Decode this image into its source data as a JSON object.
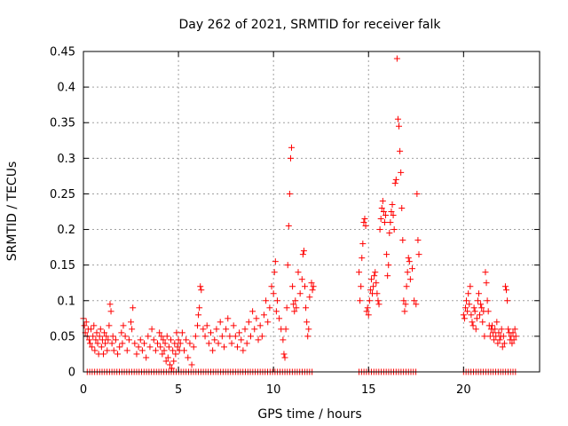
{
  "chart_data": {
    "type": "scatter",
    "title": "Day 262 of 2021, SRMTID for receiver falk",
    "xlabel": "GPS time / hours",
    "ylabel": "SRMTID / TECUs",
    "xlim": [
      0,
      24
    ],
    "ylim": [
      0,
      0.45
    ],
    "xticks": [
      0,
      5,
      10,
      15,
      20
    ],
    "xtick_labels": [
      "0",
      "5",
      "10",
      "15",
      "20"
    ],
    "yticks": [
      0,
      0.05,
      0.1,
      0.15,
      0.2,
      0.25,
      0.3,
      0.35,
      0.4,
      0.45
    ],
    "ytick_labels": [
      "0",
      "0.05",
      "0.1",
      "0.15",
      "0.2",
      "0.25",
      "0.3",
      "0.35",
      "0.4",
      "0.45"
    ],
    "grid": true,
    "marker": "plus",
    "color": "#ff0000",
    "series": [
      {
        "name": "SRMTID",
        "points": [
          [
            0.0,
            0.075
          ],
          [
            0.05,
            0.065
          ],
          [
            0.1,
            0.055
          ],
          [
            0.15,
            0.07
          ],
          [
            0.2,
            0.05
          ],
          [
            0.25,
            0.06
          ],
          [
            0.3,
            0.045
          ],
          [
            0.35,
            0.04
          ],
          [
            0.4,
            0.06
          ],
          [
            0.45,
            0.035
          ],
          [
            0.5,
            0.05
          ],
          [
            0.55,
            0.065
          ],
          [
            0.6,
            0.03
          ],
          [
            0.65,
            0.045
          ],
          [
            0.7,
            0.055
          ],
          [
            0.75,
            0.04
          ],
          [
            0.8,
            0.025
          ],
          [
            0.85,
            0.05
          ],
          [
            0.9,
            0.06
          ],
          [
            0.95,
            0.035
          ],
          [
            1.0,
            0.045
          ],
          [
            1.05,
            0.025
          ],
          [
            1.1,
            0.055
          ],
          [
            1.15,
            0.04
          ],
          [
            1.2,
            0.05
          ],
          [
            1.25,
            0.03
          ],
          [
            1.3,
            0.045
          ],
          [
            1.35,
            0.065
          ],
          [
            1.4,
            0.095
          ],
          [
            1.45,
            0.085
          ],
          [
            1.5,
            0.04
          ],
          [
            1.55,
            0.05
          ],
          [
            1.6,
            0.03
          ],
          [
            1.7,
            0.045
          ],
          [
            1.8,
            0.025
          ],
          [
            1.9,
            0.035
          ],
          [
            2.0,
            0.055
          ],
          [
            2.05,
            0.04
          ],
          [
            2.1,
            0.065
          ],
          [
            2.2,
            0.05
          ],
          [
            2.3,
            0.03
          ],
          [
            2.4,
            0.045
          ],
          [
            2.5,
            0.07
          ],
          [
            2.55,
            0.06
          ],
          [
            2.6,
            0.09
          ],
          [
            2.7,
            0.04
          ],
          [
            2.8,
            0.025
          ],
          [
            2.9,
            0.035
          ],
          [
            3.0,
            0.045
          ],
          [
            3.1,
            0.03
          ],
          [
            3.2,
            0.04
          ],
          [
            3.3,
            0.02
          ],
          [
            3.4,
            0.05
          ],
          [
            3.5,
            0.035
          ],
          [
            3.6,
            0.06
          ],
          [
            3.7,
            0.045
          ],
          [
            3.8,
            0.03
          ],
          [
            3.9,
            0.04
          ],
          [
            4.0,
            0.055
          ],
          [
            4.05,
            0.035
          ],
          [
            4.1,
            0.05
          ],
          [
            4.15,
            0.025
          ],
          [
            4.2,
            0.045
          ],
          [
            4.25,
            0.03
          ],
          [
            4.3,
            0.04
          ],
          [
            4.35,
            0.015
          ],
          [
            4.4,
            0.05
          ],
          [
            4.45,
            0.02
          ],
          [
            4.5,
            0.035
          ],
          [
            4.55,
            0.01
          ],
          [
            4.6,
            0.045
          ],
          [
            4.65,
            0.005
          ],
          [
            4.7,
            0.03
          ],
          [
            4.75,
            0.015
          ],
          [
            4.8,
            0.04
          ],
          [
            4.85,
            0.025
          ],
          [
            4.9,
            0.055
          ],
          [
            4.95,
            0.035
          ],
          [
            5.0,
            0.045
          ],
          [
            5.05,
            0.03
          ],
          [
            5.1,
            0.04
          ],
          [
            5.2,
            0.055
          ],
          [
            5.3,
            0.03
          ],
          [
            5.4,
            0.045
          ],
          [
            5.5,
            0.02
          ],
          [
            5.6,
            0.04
          ],
          [
            5.7,
            0.01
          ],
          [
            5.8,
            0.035
          ],
          [
            5.9,
            0.05
          ],
          [
            6.0,
            0.065
          ],
          [
            6.05,
            0.08
          ],
          [
            6.1,
            0.09
          ],
          [
            6.15,
            0.12
          ],
          [
            6.2,
            0.115
          ],
          [
            6.3,
            0.06
          ],
          [
            6.4,
            0.05
          ],
          [
            6.5,
            0.065
          ],
          [
            6.6,
            0.04
          ],
          [
            6.7,
            0.055
          ],
          [
            6.8,
            0.03
          ],
          [
            6.9,
            0.045
          ],
          [
            7.0,
            0.06
          ],
          [
            7.1,
            0.04
          ],
          [
            7.2,
            0.07
          ],
          [
            7.3,
            0.05
          ],
          [
            7.4,
            0.035
          ],
          [
            7.5,
            0.06
          ],
          [
            7.6,
            0.075
          ],
          [
            7.7,
            0.05
          ],
          [
            7.8,
            0.04
          ],
          [
            7.9,
            0.065
          ],
          [
            8.0,
            0.05
          ],
          [
            8.1,
            0.035
          ],
          [
            8.2,
            0.055
          ],
          [
            8.3,
            0.045
          ],
          [
            8.4,
            0.03
          ],
          [
            8.5,
            0.06
          ],
          [
            8.6,
            0.04
          ],
          [
            8.7,
            0.07
          ],
          [
            8.8,
            0.05
          ],
          [
            8.9,
            0.085
          ],
          [
            9.0,
            0.06
          ],
          [
            9.1,
            0.075
          ],
          [
            9.2,
            0.045
          ],
          [
            9.3,
            0.065
          ],
          [
            9.4,
            0.05
          ],
          [
            9.5,
            0.08
          ],
          [
            9.6,
            0.1
          ],
          [
            9.7,
            0.07
          ],
          [
            9.8,
            0.09
          ],
          [
            9.9,
            0.12
          ],
          [
            10.0,
            0.11
          ],
          [
            10.05,
            0.14
          ],
          [
            10.1,
            0.155
          ],
          [
            10.15,
            0.085
          ],
          [
            10.2,
            0.1
          ],
          [
            10.3,
            0.075
          ],
          [
            10.4,
            0.06
          ],
          [
            10.5,
            0.045
          ],
          [
            10.55,
            0.025
          ],
          [
            10.6,
            0.02
          ],
          [
            10.65,
            0.06
          ],
          [
            10.7,
            0.09
          ],
          [
            10.75,
            0.15
          ],
          [
            10.8,
            0.205
          ],
          [
            10.85,
            0.25
          ],
          [
            10.9,
            0.3
          ],
          [
            10.95,
            0.315
          ],
          [
            11.0,
            0.12
          ],
          [
            11.05,
            0.095
          ],
          [
            11.1,
            0.085
          ],
          [
            11.15,
            0.1
          ],
          [
            11.2,
            0.09
          ],
          [
            11.3,
            0.14
          ],
          [
            11.4,
            0.11
          ],
          [
            11.5,
            0.13
          ],
          [
            11.55,
            0.165
          ],
          [
            11.6,
            0.17
          ],
          [
            11.65,
            0.12
          ],
          [
            11.7,
            0.09
          ],
          [
            11.75,
            0.07
          ],
          [
            11.8,
            0.05
          ],
          [
            11.85,
            0.06
          ],
          [
            11.9,
            0.105
          ],
          [
            12.0,
            0.125
          ],
          [
            12.05,
            0.115
          ],
          [
            12.1,
            0.12
          ],
          [
            14.5,
            0.14
          ],
          [
            14.55,
            0.1
          ],
          [
            14.6,
            0.12
          ],
          [
            14.65,
            0.16
          ],
          [
            14.7,
            0.18
          ],
          [
            14.75,
            0.21
          ],
          [
            14.8,
            0.215
          ],
          [
            14.85,
            0.205
          ],
          [
            14.9,
            0.085
          ],
          [
            14.95,
            0.09
          ],
          [
            15.0,
            0.08
          ],
          [
            15.05,
            0.1
          ],
          [
            15.1,
            0.115
          ],
          [
            15.15,
            0.13
          ],
          [
            15.2,
            0.11
          ],
          [
            15.25,
            0.12
          ],
          [
            15.3,
            0.135
          ],
          [
            15.35,
            0.14
          ],
          [
            15.4,
            0.125
          ],
          [
            15.45,
            0.11
          ],
          [
            15.5,
            0.1
          ],
          [
            15.55,
            0.095
          ],
          [
            15.6,
            0.2
          ],
          [
            15.65,
            0.215
          ],
          [
            15.7,
            0.23
          ],
          [
            15.75,
            0.24
          ],
          [
            15.8,
            0.225
          ],
          [
            15.85,
            0.21
          ],
          [
            15.9,
            0.22
          ],
          [
            15.95,
            0.165
          ],
          [
            16.0,
            0.135
          ],
          [
            16.05,
            0.15
          ],
          [
            16.1,
            0.195
          ],
          [
            16.15,
            0.21
          ],
          [
            16.2,
            0.225
          ],
          [
            16.25,
            0.235
          ],
          [
            16.3,
            0.22
          ],
          [
            16.35,
            0.2
          ],
          [
            16.4,
            0.265
          ],
          [
            16.45,
            0.27
          ],
          [
            16.5,
            0.44
          ],
          [
            16.55,
            0.355
          ],
          [
            16.6,
            0.345
          ],
          [
            16.65,
            0.31
          ],
          [
            16.7,
            0.28
          ],
          [
            16.75,
            0.23
          ],
          [
            16.8,
            0.185
          ],
          [
            16.85,
            0.1
          ],
          [
            16.9,
            0.085
          ],
          [
            16.95,
            0.095
          ],
          [
            17.0,
            0.12
          ],
          [
            17.05,
            0.14
          ],
          [
            17.1,
            0.16
          ],
          [
            17.15,
            0.155
          ],
          [
            17.2,
            0.13
          ],
          [
            17.3,
            0.145
          ],
          [
            17.4,
            0.1
          ],
          [
            17.5,
            0.095
          ],
          [
            17.55,
            0.25
          ],
          [
            17.6,
            0.185
          ],
          [
            17.65,
            0.165
          ],
          [
            20.0,
            0.08
          ],
          [
            20.05,
            0.075
          ],
          [
            20.1,
            0.09
          ],
          [
            20.15,
            0.1
          ],
          [
            20.2,
            0.085
          ],
          [
            20.25,
            0.11
          ],
          [
            20.3,
            0.095
          ],
          [
            20.35,
            0.12
          ],
          [
            20.4,
            0.08
          ],
          [
            20.45,
            0.07
          ],
          [
            20.5,
            0.065
          ],
          [
            20.55,
            0.09
          ],
          [
            20.6,
            0.085
          ],
          [
            20.65,
            0.06
          ],
          [
            20.7,
            0.075
          ],
          [
            20.75,
            0.1
          ],
          [
            20.8,
            0.11
          ],
          [
            20.85,
            0.08
          ],
          [
            20.9,
            0.095
          ],
          [
            20.95,
            0.09
          ],
          [
            21.0,
            0.07
          ],
          [
            21.05,
            0.085
          ],
          [
            21.1,
            0.05
          ],
          [
            21.15,
            0.14
          ],
          [
            21.2,
            0.125
          ],
          [
            21.25,
            0.1
          ],
          [
            21.3,
            0.085
          ],
          [
            21.35,
            0.065
          ],
          [
            21.4,
            0.05
          ],
          [
            21.45,
            0.06
          ],
          [
            21.5,
            0.065
          ],
          [
            21.55,
            0.055
          ],
          [
            21.6,
            0.045
          ],
          [
            21.65,
            0.06
          ],
          [
            21.7,
            0.05
          ],
          [
            21.75,
            0.07
          ],
          [
            21.8,
            0.04
          ],
          [
            21.85,
            0.055
          ],
          [
            21.9,
            0.045
          ],
          [
            21.95,
            0.05
          ],
          [
            22.0,
            0.06
          ],
          [
            22.05,
            0.035
          ],
          [
            22.1,
            0.05
          ],
          [
            22.15,
            0.04
          ],
          [
            22.2,
            0.12
          ],
          [
            22.25,
            0.115
          ],
          [
            22.3,
            0.1
          ],
          [
            22.35,
            0.06
          ],
          [
            22.4,
            0.055
          ],
          [
            22.45,
            0.045
          ],
          [
            22.5,
            0.05
          ],
          [
            22.55,
            0.04
          ],
          [
            22.6,
            0.055
          ],
          [
            22.65,
            0.045
          ],
          [
            22.7,
            0.06
          ],
          [
            22.75,
            0.05
          ]
        ],
        "zero_segments": [
          [
            0.2,
            12.1,
            0.13
          ],
          [
            14.5,
            17.6,
            0.13
          ],
          [
            20.0,
            22.8,
            0.13
          ]
        ]
      }
    ]
  }
}
